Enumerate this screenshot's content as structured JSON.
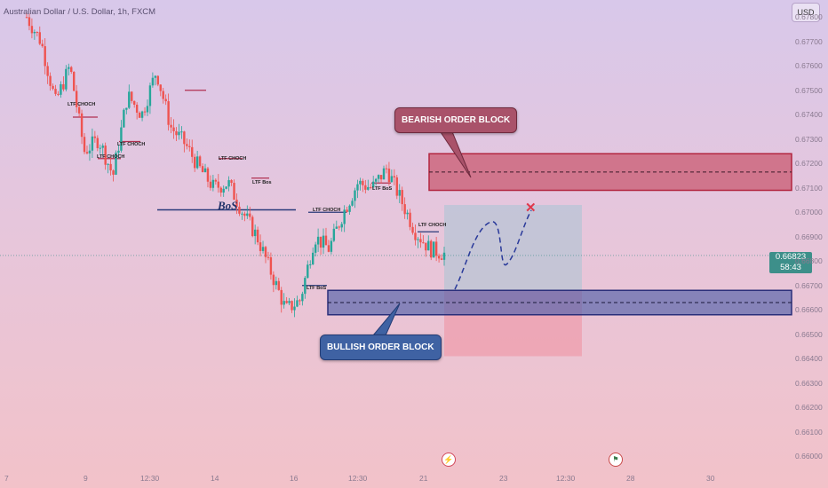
{
  "header": {
    "symbol": "Australian Dollar / U.S. Dollar, 1h, FXCM",
    "currency": "USD"
  },
  "price_tag": {
    "price": "0.66823",
    "countdown": "58:43"
  },
  "annotations": {
    "bearish_label": "BEARISH ORDER BLOCK",
    "bullish_label": "BULLISH ORDER BLOCK",
    "bos_major": "BoS",
    "ltf_choch_1": "LTF CHOCH",
    "ltf_choch_2": "LTF CHOCH",
    "ltf_choch_3": "LTF CHOCH",
    "ltf_choch_4": "LTF CHOCH",
    "ltf_choch_5": "LTF CHOCH",
    "ltf_choch_6": "LTF CHOCH",
    "ltf_bos_1": "LTF Bos",
    "ltf_bos_2": "LTF BoS",
    "ltf_bos_3": "LTF BoS"
  },
  "icons": {
    "flash": "lightning-icon",
    "flag": "flag-icon",
    "target": "cross-mark"
  },
  "colors": {
    "bull_candle": "#26a69a",
    "bear_candle": "#ef5350",
    "bearish_zone": "#c95a70",
    "bullish_zone": "#5f69ad",
    "price_line": "#3d8f8a",
    "projection": "#2a3a9a"
  },
  "chart_data": {
    "type": "candlestick",
    "y_ticks": [
      "0.67800",
      "0.67700",
      "0.67600",
      "0.67500",
      "0.67400",
      "0.67300",
      "0.67200",
      "0.67100",
      "0.67000",
      "0.66900",
      "0.66800",
      "0.66700",
      "0.66600",
      "0.66500",
      "0.66400",
      "0.66300",
      "0.66200",
      "0.66100",
      "0.66000"
    ],
    "x_ticks": [
      "7",
      "9",
      "12:30",
      "14",
      "16",
      "12:30",
      "21",
      "23",
      "12:30",
      "28",
      "30"
    ],
    "ylim": [
      0.6595,
      0.6787
    ],
    "current_price": 0.66823,
    "bearish_order_block": {
      "high": 0.6724,
      "low": 0.6709
    },
    "bullish_order_block": {
      "high": 0.6668,
      "low": 0.6658
    },
    "key_levels": [
      {
        "label": "BoS",
        "price": 0.6701
      },
      {
        "label": "LTF CHOCH",
        "price": 0.6697
      },
      {
        "label": "LTF BoS",
        "price": 0.6681
      }
    ],
    "projection_box": {
      "top": 0.6703,
      "entry": 0.6668,
      "bottom": 0.6641
    },
    "price_path": [
      0.678,
      0.677,
      0.6745,
      0.676,
      0.6725,
      0.673,
      0.6715,
      0.6748,
      0.674,
      0.6758,
      0.6735,
      0.6728,
      0.6718,
      0.671,
      0.6712,
      0.67,
      0.669,
      0.6675,
      0.666,
      0.6664,
      0.669,
      0.6685,
      0.67,
      0.6712,
      0.671,
      0.6718,
      0.6705,
      0.6692,
      0.6685,
      0.6683
    ]
  }
}
